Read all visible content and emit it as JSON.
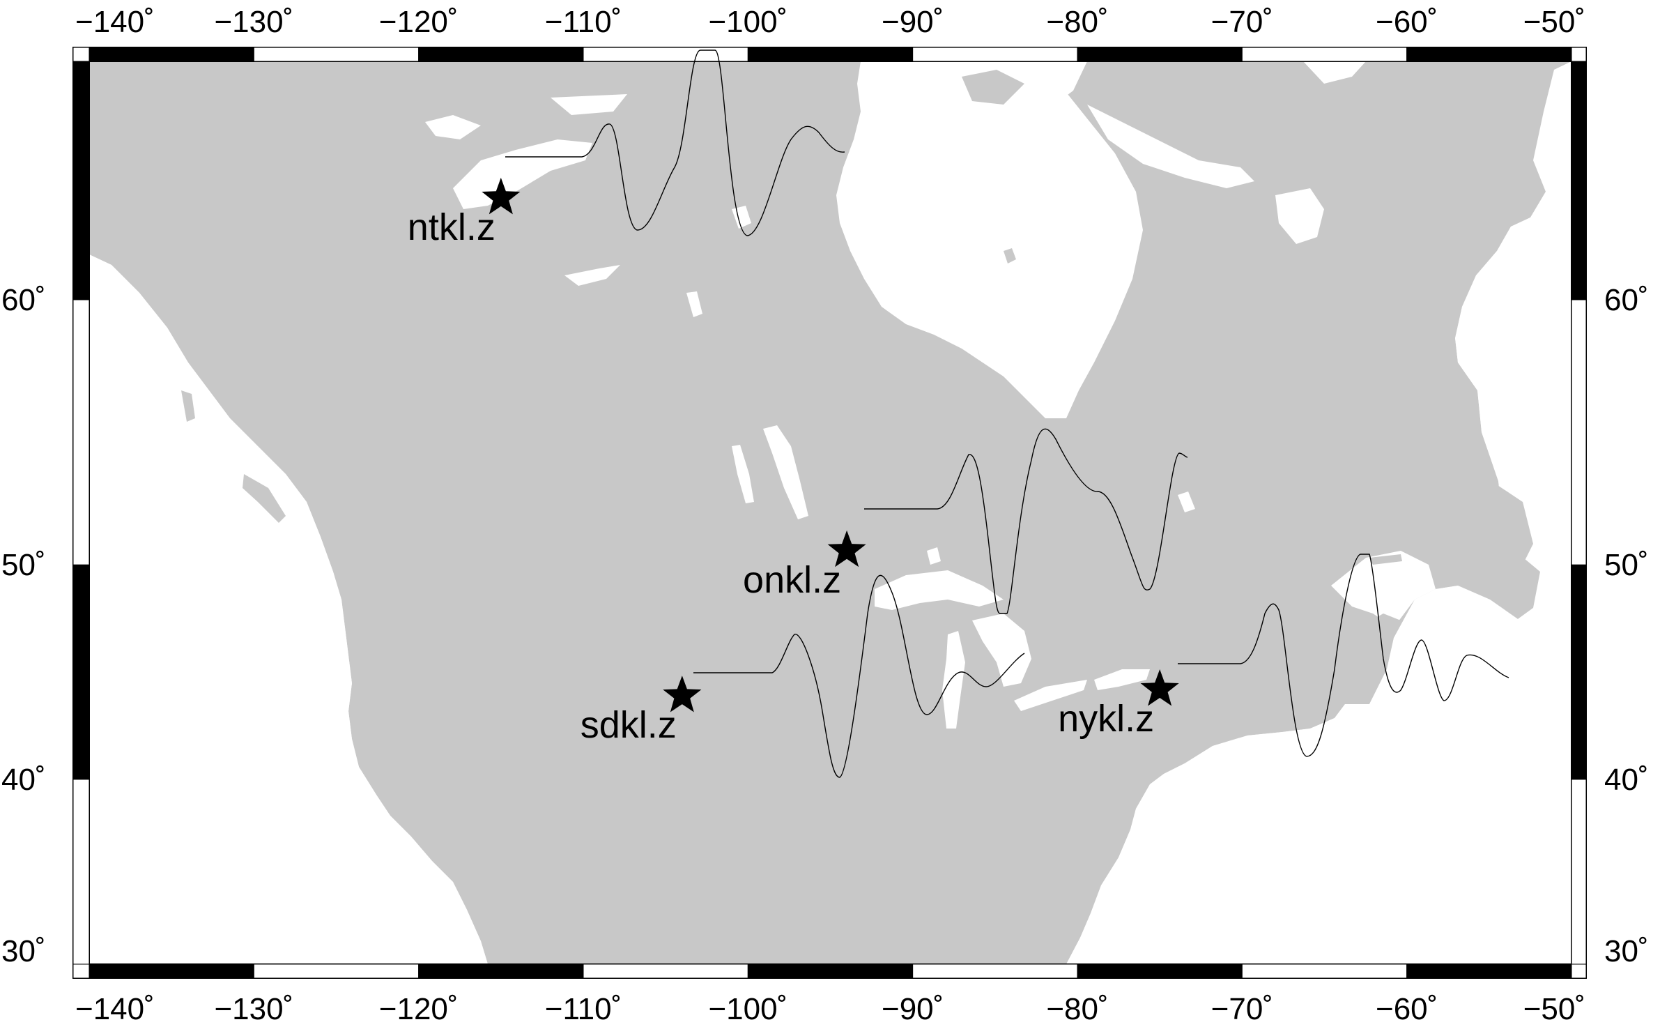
{
  "map": {
    "projection": "mercator",
    "lon_range": [
      -140,
      -50
    ],
    "lat_range": [
      30,
      67
    ],
    "land_color": "#c8c8c8",
    "water_color": "#ffffff",
    "frame_color": "#000000",
    "lon_ticks": [
      "−140˚",
      "−130˚",
      "−120˚",
      "−110˚",
      "−100˚",
      "−90˚",
      "−80˚",
      "−70˚",
      "−60˚",
      "−50˚"
    ],
    "lat_ticks": [
      "30˚",
      "40˚",
      "50˚",
      "60˚"
    ]
  },
  "stations": [
    {
      "name": "ntkl.z",
      "lon": -115,
      "lat": 63.2,
      "icon": "star-icon"
    },
    {
      "name": "onkl.z",
      "lon": -94,
      "lat": 50.6,
      "icon": "star-icon"
    },
    {
      "name": "sdkl.z",
      "lon": -104,
      "lat": 44.1,
      "icon": "star-icon"
    },
    {
      "name": "nykl.z",
      "lon": -75,
      "lat": 44.4,
      "icon": "star-icon"
    }
  ]
}
